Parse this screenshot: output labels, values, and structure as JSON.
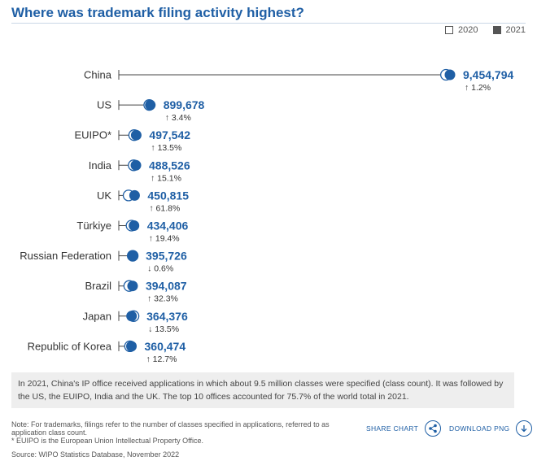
{
  "header": {
    "title": "Where was trademark filing activity highest?"
  },
  "legend": {
    "label_2020": "2020",
    "label_2021": "2021"
  },
  "colors": {
    "accent": "#1f5fa5",
    "text": "#333333"
  },
  "chart_data": {
    "type": "dumbbell",
    "title": "Where was trademark filing activity highest?",
    "series": [
      {
        "name": "2020"
      },
      {
        "name": "2021"
      }
    ],
    "categories": [
      "China",
      "US",
      "EUIPO*",
      "India",
      "UK",
      "Türkiye",
      "Russian Federation",
      "Brazil",
      "Japan",
      "Republic of Korea"
    ],
    "values_2021": [
      9454794,
      899678,
      497542,
      488526,
      450815,
      434406,
      395726,
      394087,
      364376,
      360474
    ],
    "values_2020": [
      9342306,
      870003,
      438350,
      424321,
      278850,
      363741,
      398114,
      297882,
      421331,
      319875
    ],
    "value_labels": [
      "9,454,794",
      "899,678",
      "497,542",
      "488,526",
      "450,815",
      "434,406",
      "395,726",
      "394,087",
      "364,376",
      "360,474"
    ],
    "growth_labels": [
      "1.2%",
      "3.4%",
      "13.5%",
      "15.1%",
      "61.8%",
      "19.4%",
      "0.6%",
      "32.3%",
      "13.5%",
      "12.7%"
    ],
    "growth_direction": [
      "up",
      "up",
      "up",
      "up",
      "up",
      "up",
      "down",
      "up",
      "down",
      "up"
    ],
    "grid": false
  },
  "note": {
    "text": "In 2021, China's IP office received applications in which about 9.5 million classes were specified (class count). It was followed by the US, the EUIPO, India and the UK. The top 10 offices accounted for 75.7% of the world total in 2021."
  },
  "footnotes": {
    "line1": "Note: For trademarks, filings refer to the number of classes specified in applications, referred to as application class count.",
    "line2": "* EUIPO is the European Union Intellectual Property Office."
  },
  "source": {
    "text": "Source: WIPO Statistics Database, November 2022"
  },
  "actions": {
    "share_label": "SHARE CHART",
    "download_label": "DOWNLOAD PNG"
  }
}
